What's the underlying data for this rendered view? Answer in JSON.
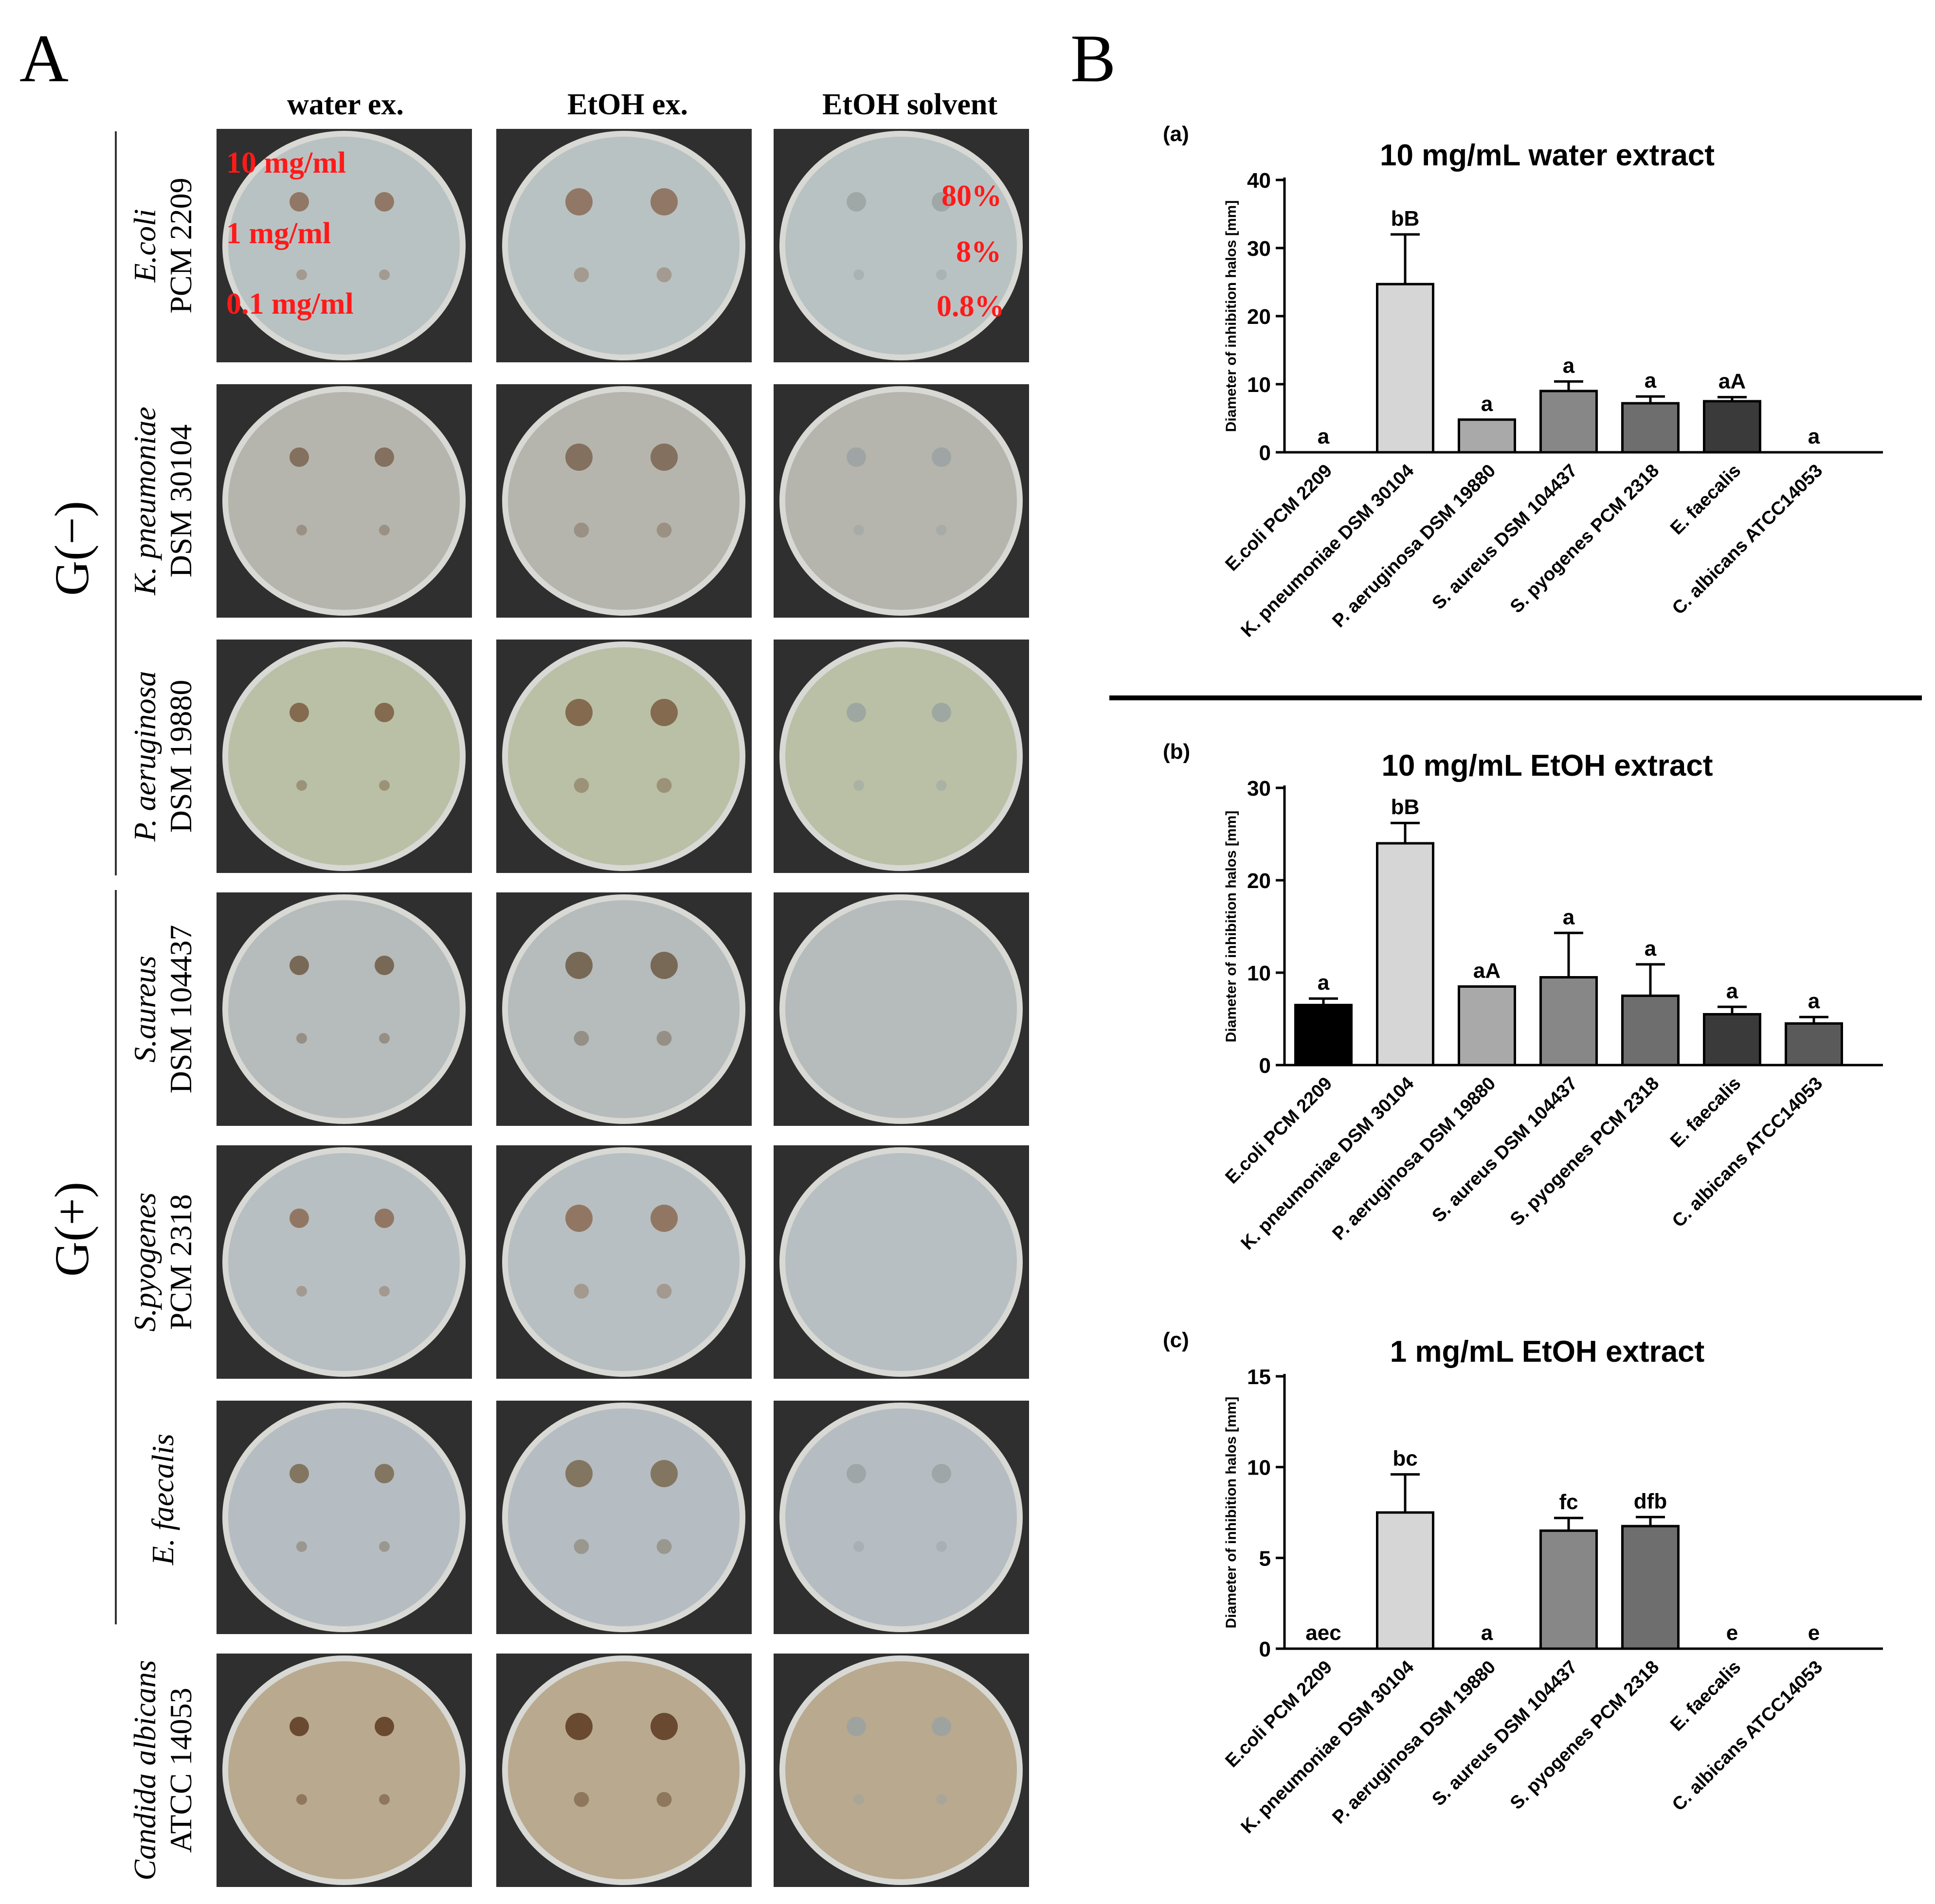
{
  "figure": {
    "panel_A": "A",
    "panel_B": "B",
    "columns": [
      "water ex.",
      "EtOH ex.",
      "EtOH solvent"
    ],
    "groups": {
      "gram_negative": "G(−)",
      "gram_positive": "G(+)"
    },
    "rows": [
      {
        "italic": "E.coli",
        "plain": "PCM 2209"
      },
      {
        "italic": "K. pneumoniae",
        "plain": "DSM 30104"
      },
      {
        "italic": "P. aeruginosa",
        "plain": "DSM 19880"
      },
      {
        "italic": "S.aureus",
        "plain": "DSM 104437"
      },
      {
        "italic": "S.pyogenes",
        "plain": "PCM 2318"
      },
      {
        "italic": "E. faecalis",
        "plain": ""
      },
      {
        "italic": "Candida albicans",
        "plain": "ATCC 14053"
      }
    ],
    "concentrations": [
      "10 mg/ml",
      "1 mg/ml",
      "0.1 mg/ml"
    ],
    "solvent_percents": [
      "80%",
      "8%",
      "0.8%"
    ],
    "colors": {
      "red_text": "#ff1a1a",
      "plate_background": "#2f2f2f"
    }
  },
  "chart_data": [
    {
      "type": "bar",
      "panel": "(a)",
      "title": "10 mg/mL water extract",
      "ylabel": "Diameter of inhibition halos [mm]",
      "ylim": [
        0,
        40
      ],
      "yticks": [
        0,
        10,
        20,
        30,
        40
      ],
      "categories": [
        "E.coli PCM 2209",
        "K. pneumoniae DSM 30104",
        "P. aeruginosa DSM 19880",
        "S. aureus DSM 104437",
        "S. pyogenes PCM 2318",
        "E. faecalis",
        "C. albicans ATCC14053"
      ],
      "values": [
        0,
        24.7,
        4.8,
        9.0,
        7.2,
        7.5,
        0
      ],
      "errors": [
        0,
        7.3,
        0,
        1.4,
        1.0,
        0.6,
        0
      ],
      "labels": [
        "a",
        "bB",
        "a",
        "a",
        "a",
        "aA",
        "a"
      ],
      "colors": [
        "#000000",
        "#d6d6d6",
        "#a9a9a9",
        "#878787",
        "#6e6e6e",
        "#3a3a3a",
        "#5a5a5a"
      ]
    },
    {
      "type": "bar",
      "panel": "(b)",
      "title": "10 mg/mL EtOH extract",
      "ylabel": "Diameter of inhibition halos [mm]",
      "ylim": [
        0,
        30
      ],
      "yticks": [
        0,
        10,
        20,
        30
      ],
      "categories": [
        "E.coli PCM 2209",
        "K. pneumoniae DSM 30104",
        "P. aeruginosa DSM 19880",
        "S. aureus DSM 104437",
        "S. pyogenes PCM 2318",
        "E. faecalis",
        "C. albicans ATCC14053"
      ],
      "values": [
        6.5,
        24.0,
        8.5,
        9.5,
        7.5,
        5.5,
        4.5
      ],
      "errors": [
        0.7,
        2.2,
        0,
        4.8,
        3.4,
        0.8,
        0.7
      ],
      "labels": [
        "a",
        "bB",
        "aA",
        "a",
        "a",
        "a",
        "a"
      ],
      "colors": [
        "#000000",
        "#d6d6d6",
        "#a9a9a9",
        "#878787",
        "#6e6e6e",
        "#3a3a3a",
        "#5a5a5a"
      ]
    },
    {
      "type": "bar",
      "panel": "(c)",
      "title": "1 mg/mL EtOH extract",
      "ylabel": "Diameter of inhibition halos [mm]",
      "ylim": [
        0,
        15
      ],
      "yticks": [
        0,
        5,
        10,
        15
      ],
      "categories": [
        "E.coli PCM 2209",
        "K. pneumoniae DSM 30104",
        "P. aeruginosa DSM 19880",
        "S. aureus DSM 104437",
        "S. pyogenes PCM 2318",
        "E. faecalis",
        "C. albicans ATCC14053"
      ],
      "values": [
        0,
        7.5,
        0,
        6.5,
        6.75,
        0,
        0
      ],
      "errors": [
        0,
        2.1,
        0,
        0.7,
        0.5,
        0,
        0
      ],
      "labels": [
        "aec",
        "bc",
        "a",
        "fc",
        "dfb",
        "e",
        "e"
      ],
      "colors": [
        "#000000",
        "#d6d6d6",
        "#a9a9a9",
        "#878787",
        "#6e6e6e",
        "#3a3a3a",
        "#5a5a5a"
      ]
    }
  ]
}
